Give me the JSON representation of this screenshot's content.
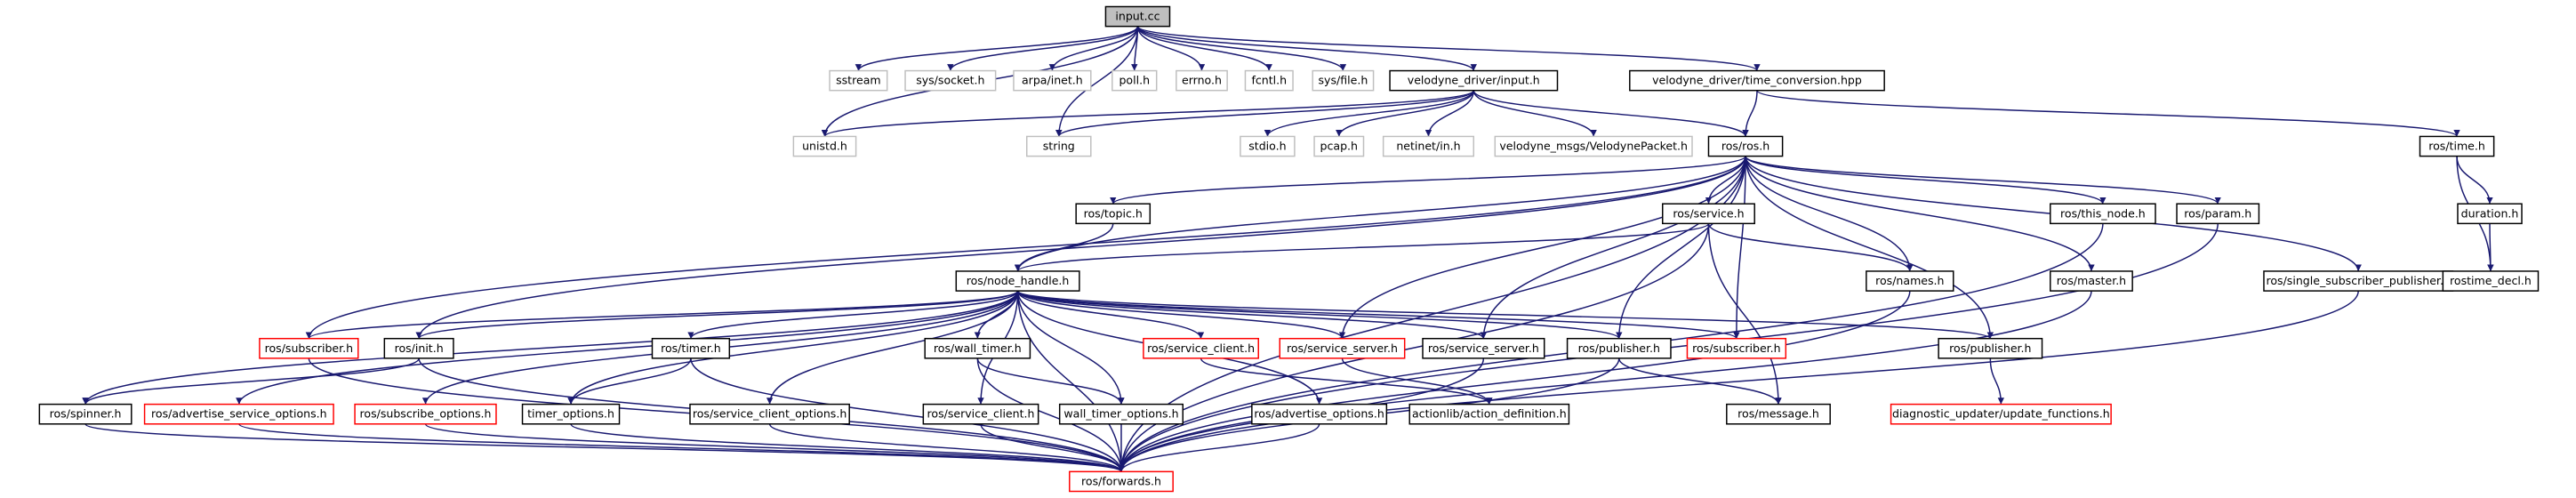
{
  "nodes": [
    "input.cc",
    "sstream",
    "sys/socket.h",
    "arpa/inet.h",
    "poll.h",
    "errno.h",
    "fcntl.h",
    "sys/file.h",
    "velodyne_driver/input.h",
    "velodyne_driver/time_conversion.hpp",
    "unistd.h",
    "string",
    "stdio.h",
    "pcap.h",
    "netinet/in.h",
    "velodyne_msgs/VelodynePacket.h",
    "ros/ros.h",
    "ros/time.h",
    "ros/topic.h",
    "ros/service.h",
    "ros/this_node.h",
    "ros/param.h",
    "duration.h",
    "ros/node_handle.h",
    "ros/names.h",
    "ros/master.h",
    "ros/single_subscriber_publisher.h",
    "rostime_decl.h",
    "ros/subscriber.h",
    "ros/init.h",
    "ros/timer.h",
    "ros/wall_timer.h",
    "ros/service_client.h",
    "ros/service_server.h",
    "ros/service_server.h",
    "ros/publisher.h",
    "ros/subscriber.h",
    "ros/publisher.h",
    "ros/spinner.h",
    "ros/advertise_service_options.h",
    "ros/subscribe_options.h",
    "timer_options.h",
    "ros/service_client_options.h",
    "ros/service_client.h",
    "wall_timer_options.h",
    "ros/advertise_options.h",
    "actionlib/action_definition.h",
    "ros/message.h",
    "diagnostic_updater/update_functions.h",
    "ros/forwards.h"
  ]
}
